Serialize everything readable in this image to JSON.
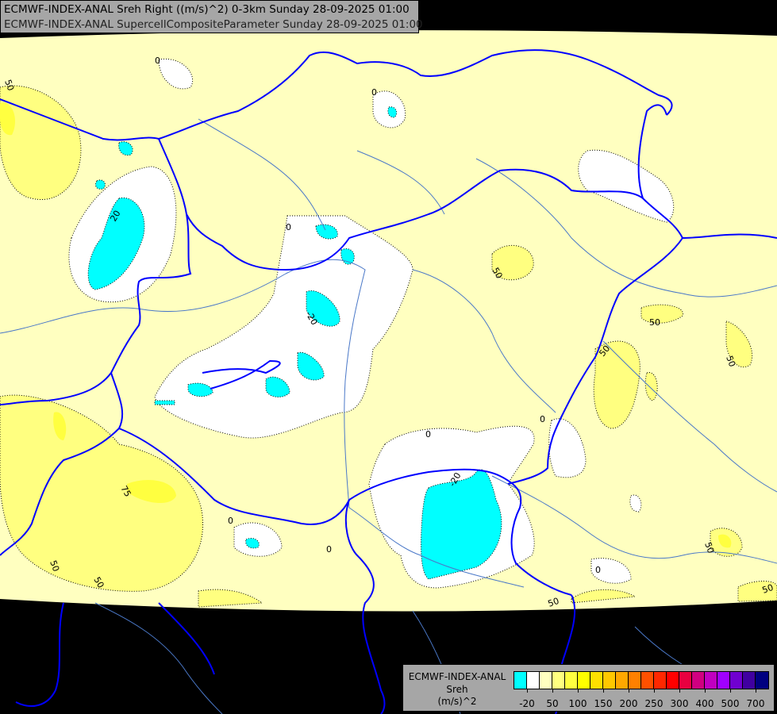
{
  "title": {
    "line1": "ECMWF-INDEX-ANAL Sreh Right ((m/s)^2) 0-3km Sunday 28-09-2025 01:00",
    "line2": "ECMWF-INDEX-ANAL SupercellCompositeParameter Sunday 28-09-2025 01:00"
  },
  "legend": {
    "line1": "ECMWF-INDEX-ANAL",
    "line2": "Sreh",
    "line3": "(m/s)^2",
    "colors": [
      "#00ffff",
      "#ffffff",
      "#ffffc0",
      "#ffff80",
      "#ffff40",
      "#ffff00",
      "#ffe000",
      "#ffc800",
      "#ffa800",
      "#ff8000",
      "#ff5000",
      "#ff2800",
      "#ff0000",
      "#e80040",
      "#d00080",
      "#c000c0",
      "#a000ff",
      "#7000d0",
      "#4000a0",
      "#000080"
    ],
    "ticks": [
      "-20",
      "50",
      "100",
      "150",
      "200",
      "250",
      "300",
      "400",
      "500",
      "700"
    ]
  },
  "map": {
    "colors": {
      "background": "#000000",
      "sreh_0_50": "#ffffc0",
      "sreh_50_75": "#ffff80",
      "sreh_75_100": "#ffff40",
      "sreh_neg20_0": "#ffffff",
      "sreh_below_neg20": "#00ffff",
      "borders": "#0000ff",
      "rivers": "#4070c0"
    },
    "contour_labels": [
      "50",
      "0",
      "0",
      "20",
      "0",
      "-20",
      "50",
      "50",
      "50",
      "50",
      "20",
      "0",
      "0",
      "75",
      "0",
      "0",
      "-20",
      "0",
      "50",
      "50",
      "50",
      "0",
      "50",
      "50"
    ]
  }
}
